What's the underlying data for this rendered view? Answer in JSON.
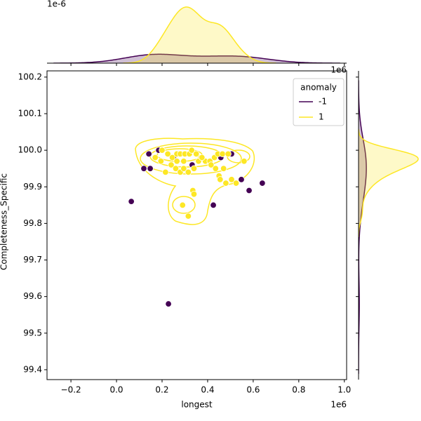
{
  "chart_data": {
    "type": "scatter",
    "xlabel": "longest",
    "ylabel": "Completeness_Specific",
    "x_offset_label": "1e6",
    "top_offset_label": "1e-6",
    "right_offset_label": "1e6",
    "legend_title": "anomaly",
    "legend_loc": "upper right",
    "xlim": [
      -0.305,
      1.01
    ],
    "ylim": [
      99.373,
      100.217
    ],
    "xticks": [
      {
        "value": -0.2,
        "label": "−0.2"
      },
      {
        "value": 0,
        "label": "0.0"
      },
      0.2,
      0.4,
      0.6,
      0.8,
      {
        "value": 1,
        "label": "1.0"
      }
    ],
    "yticks": [
      99.4,
      99.5,
      99.6,
      99.7,
      99.8,
      99.9,
      {
        "value": 100,
        "label": "100.0"
      },
      100.1,
      100.2
    ],
    "series": [
      {
        "name": "-1",
        "color": "#440154",
        "x": [
          0.065,
          0.12,
          0.148,
          0.142,
          0.185,
          0.25,
          0.332,
          0.458,
          0.505,
          0.425,
          0.548,
          0.582,
          0.64,
          0.228
        ],
        "y": [
          99.86,
          99.95,
          99.95,
          99.99,
          100.0,
          99.98,
          99.96,
          99.98,
          99.99,
          99.85,
          99.92,
          99.89,
          99.91,
          99.58
        ]
      },
      {
        "name": "1",
        "color": "#fde725",
        "x": [
          0.2,
          0.225,
          0.245,
          0.265,
          0.28,
          0.3,
          0.32,
          0.33,
          0.35,
          0.37,
          0.39,
          0.41,
          0.43,
          0.445,
          0.465,
          0.49,
          0.17,
          0.195,
          0.215,
          0.24,
          0.26,
          0.28,
          0.295,
          0.315,
          0.34,
          0.36,
          0.375,
          0.295,
          0.265,
          0.415,
          0.435,
          0.45,
          0.455,
          0.47,
          0.48,
          0.505,
          0.525,
          0.56,
          0.335,
          0.34,
          0.29,
          0.315
        ],
        "y": [
          100.0,
          99.99,
          99.98,
          99.99,
          99.99,
          99.99,
          99.99,
          100.0,
          99.99,
          99.98,
          99.97,
          99.97,
          99.98,
          99.99,
          99.99,
          99.99,
          99.98,
          99.97,
          99.94,
          99.96,
          99.95,
          99.94,
          99.95,
          99.94,
          99.95,
          99.97,
          99.98,
          99.97,
          99.97,
          99.96,
          99.95,
          99.93,
          99.92,
          99.95,
          99.91,
          99.92,
          99.91,
          99.97,
          99.89,
          99.88,
          99.85,
          99.82
        ]
      }
    ]
  }
}
